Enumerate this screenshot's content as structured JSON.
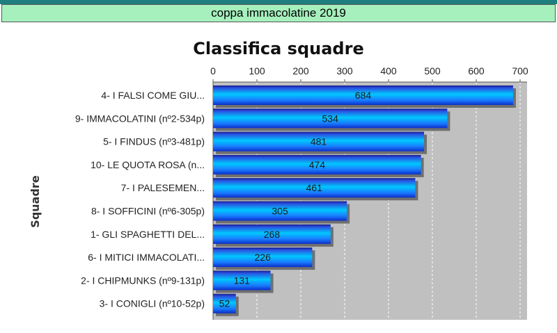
{
  "header": {
    "banner_title": "coppa immacolatine 2019"
  },
  "chart_data": {
    "type": "bar",
    "orientation": "horizontal",
    "title": "Classifica squadre",
    "ylabel": "Squadre",
    "xlabel": "",
    "xlim": [
      0,
      715
    ],
    "x_ticks": [
      0,
      100,
      200,
      300,
      400,
      500,
      600,
      700
    ],
    "x_axis_position": "top",
    "grid": true,
    "bar_color": "#1f6fff",
    "plot_background": "#c0c0c0",
    "categories": [
      "4- I FALSI COME GIU...",
      "9- IMMACOLATINI (nº2-534p)",
      "5- I FINDUS (nº3-481p)",
      "10- LE QUOTA ROSA (n...",
      "7- I PALESEMEN...",
      "8- I SOFFICINI (nº6-305p)",
      "1- GLI SPAGHETTI DEL...",
      "6- I MITICI IMMACOLATI...",
      "2- I CHIPMUNKS (nº9-131p)",
      "3- I CONIGLI (nº10-52p)"
    ],
    "values": [
      684,
      534,
      481,
      474,
      461,
      305,
      268,
      226,
      131,
      52
    ]
  }
}
